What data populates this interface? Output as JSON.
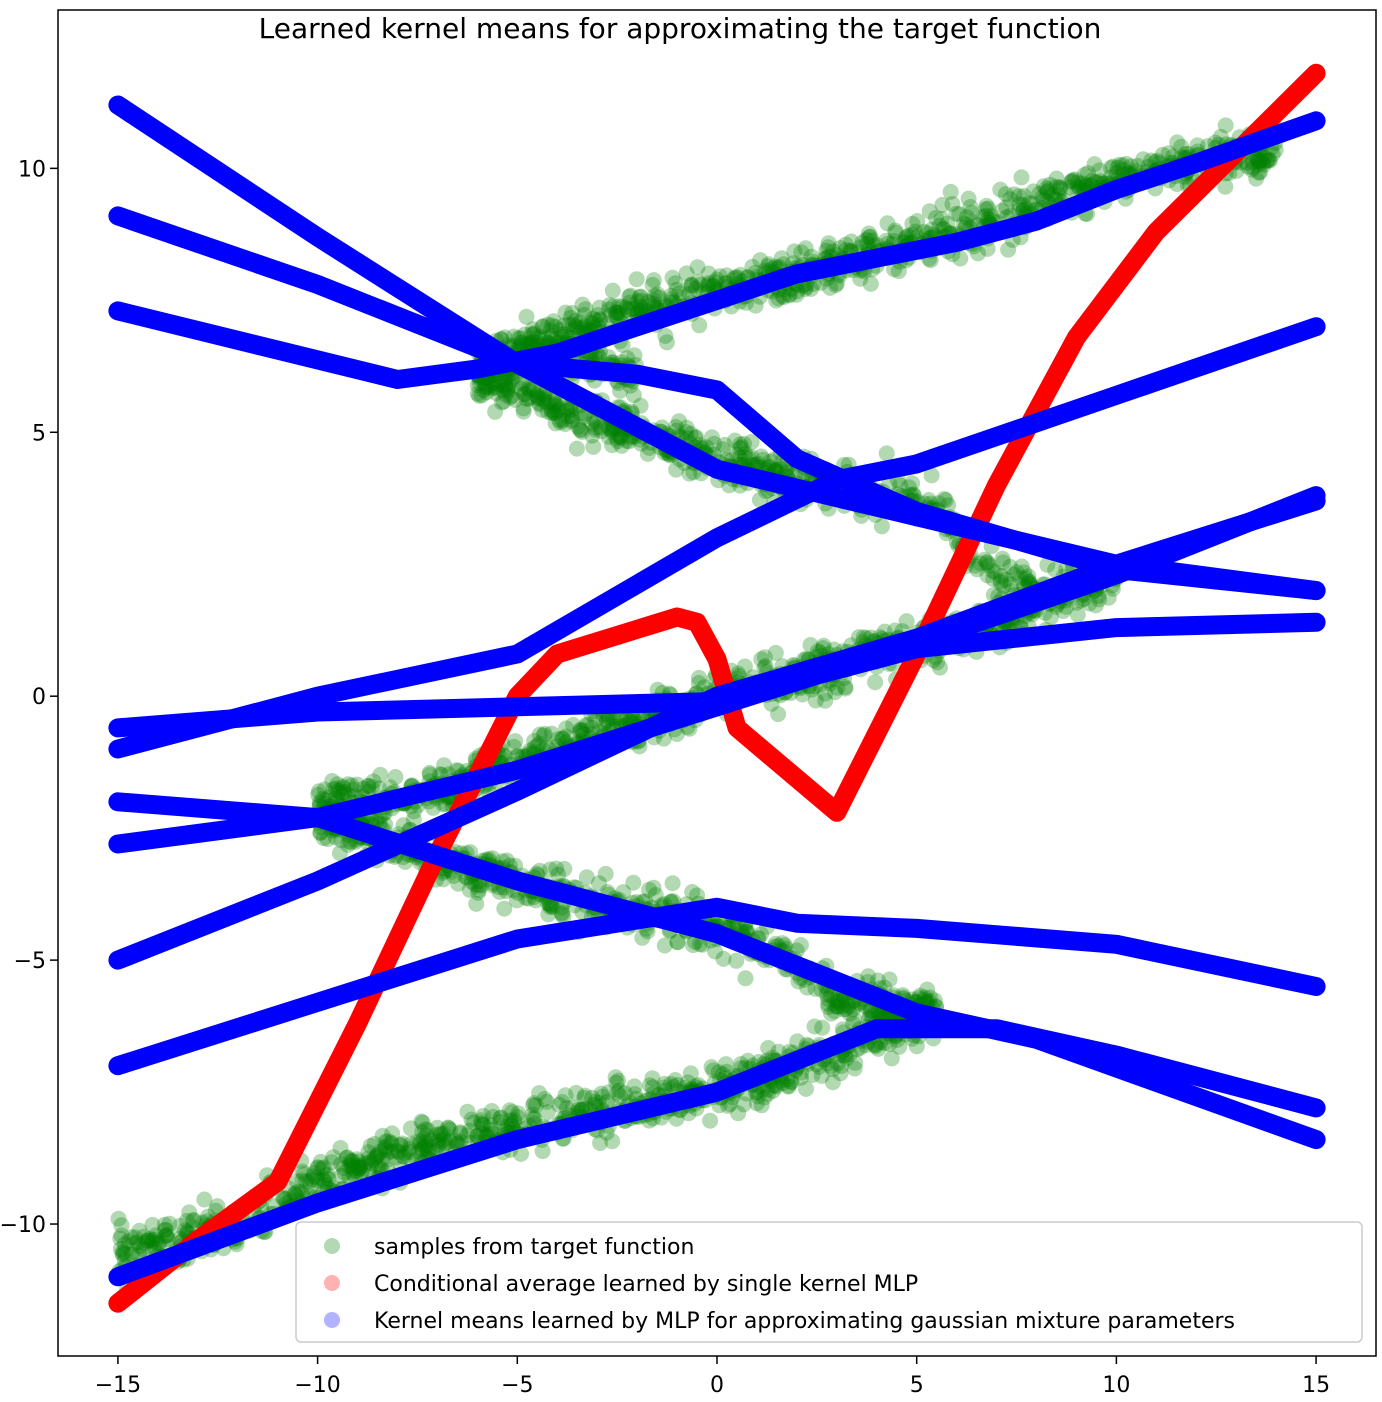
{
  "chart_data": {
    "type": "scatter",
    "title": "Learned kernel means for approximating the target function",
    "xlabel": "",
    "ylabel": "",
    "xlim": [
      -16.5,
      16.5
    ],
    "ylim": [
      -12.5,
      13.0
    ],
    "grid": false,
    "legend_placement": "lower-right",
    "x_ticks": [
      {
        "value": -15,
        "label": "−15"
      },
      {
        "value": -10,
        "label": "−10"
      },
      {
        "value": -5,
        "label": "−5"
      },
      {
        "value": 0,
        "label": "0"
      },
      {
        "value": 5,
        "label": "5"
      },
      {
        "value": 10,
        "label": "10"
      },
      {
        "value": 15,
        "label": "15"
      }
    ],
    "y_ticks": [
      {
        "value": -10,
        "label": "−10"
      },
      {
        "value": -5,
        "label": "−5"
      },
      {
        "value": 0,
        "label": "0"
      },
      {
        "value": 5,
        "label": "5"
      },
      {
        "value": 10,
        "label": "10"
      }
    ],
    "series": [
      {
        "name": "samples from target function",
        "color": "#008000",
        "alpha": 0.3,
        "kind": "scatter-cloud",
        "branches": [
          {
            "points": [
              [
                -15,
                -10.5
              ],
              [
                -12,
                -10.1
              ],
              [
                -10,
                -9.2
              ],
              [
                -8,
                -8.7
              ],
              [
                -6,
                -8.3
              ],
              [
                -4,
                -8.0
              ],
              [
                -2,
                -7.7
              ],
              [
                0,
                -7.5
              ],
              [
                2,
                -7.0
              ],
              [
                4,
                -6.4
              ],
              [
                5.5,
                -6.0
              ]
            ]
          },
          {
            "points": [
              [
                -10,
                -2.0
              ],
              [
                -8,
                -2.0
              ],
              [
                -6,
                -1.5
              ],
              [
                -4,
                -1.0
              ],
              [
                -2,
                -0.5
              ],
              [
                0,
                0.0
              ],
              [
                2,
                0.4
              ],
              [
                4,
                0.8
              ],
              [
                6,
                1.2
              ],
              [
                8,
                1.6
              ]
            ]
          },
          {
            "points": [
              [
                -10,
                -2.3
              ],
              [
                -8,
                -2.8
              ],
              [
                -6,
                -3.4
              ],
              [
                -4,
                -3.7
              ],
              [
                -2,
                -4.1
              ],
              [
                0,
                -4.4
              ],
              [
                2,
                -5.0
              ],
              [
                3,
                -5.8
              ],
              [
                4,
                -5.9
              ],
              [
                5.5,
                -6.0
              ]
            ]
          },
          {
            "points": [
              [
                -6,
                6.2
              ],
              [
                -4,
                6.8
              ],
              [
                -2,
                7.3
              ],
              [
                0,
                7.7
              ],
              [
                2,
                8.0
              ],
              [
                4,
                8.4
              ],
              [
                6,
                8.8
              ],
              [
                8,
                9.3
              ],
              [
                10,
                9.8
              ],
              [
                12,
                10.2
              ],
              [
                14,
                10.3
              ]
            ]
          },
          {
            "points": [
              [
                -6,
                6.0
              ],
              [
                -4,
                5.5
              ],
              [
                -2,
                5.0
              ],
              [
                0,
                4.4
              ],
              [
                2,
                4.1
              ],
              [
                4,
                3.8
              ],
              [
                5.5,
                3.6
              ],
              [
                6.5,
                2.5
              ],
              [
                8,
                1.9
              ],
              [
                10,
                2.2
              ]
            ]
          },
          {
            "points": [
              [
                -6,
                6.4
              ],
              [
                -4,
                6.5
              ],
              [
                -2,
                6.0
              ]
            ]
          }
        ]
      },
      {
        "name": "Conditional average learned by single kernel MLP",
        "color": "#ff0000",
        "kind": "thick-line",
        "x": [
          -15,
          -13,
          -11,
          -9,
          -7,
          -5,
          -4,
          -1,
          -0.5,
          0,
          0.5,
          3,
          5,
          7,
          9,
          11,
          13,
          15
        ],
        "y": [
          -11.5,
          -10.3,
          -9.2,
          -6.2,
          -3.0,
          0.0,
          0.8,
          1.5,
          1.4,
          0.7,
          -0.6,
          -2.2,
          0.8,
          4.0,
          6.8,
          8.8,
          10.3,
          11.8
        ]
      },
      {
        "name": "Kernel means learned by MLP for approximating gaussian mixture parameters",
        "color": "#0000ff",
        "kind": "thick-lines",
        "lines": [
          {
            "x": [
              -15,
              -10,
              -5,
              0,
              5,
              10,
              15
            ],
            "y": [
              11.2,
              8.7,
              6.3,
              4.3,
              3.4,
              2.5,
              2.0
            ]
          },
          {
            "x": [
              -15,
              -10,
              -5,
              -2,
              0,
              2,
              5,
              10,
              15
            ],
            "y": [
              9.1,
              7.8,
              6.3,
              6.1,
              5.8,
              4.5,
              3.5,
              2.4,
              2.0
            ]
          },
          {
            "x": [
              -15,
              -8,
              -6,
              -4,
              -2,
              0,
              2,
              4,
              6,
              8,
              10,
              12,
              15
            ],
            "y": [
              7.3,
              6.0,
              6.2,
              6.5,
              7.0,
              7.5,
              8.0,
              8.3,
              8.6,
              9.0,
              9.6,
              10.1,
              10.9
            ]
          },
          {
            "x": [
              -15,
              -10,
              -5,
              0,
              3,
              5,
              10,
              15
            ],
            "y": [
              -1.0,
              0.0,
              0.8,
              3.0,
              4.1,
              4.4,
              5.7,
              7.0
            ]
          },
          {
            "x": [
              -15,
              -10,
              -5,
              0,
              5,
              10,
              15
            ],
            "y": [
              -0.6,
              -0.3,
              -0.2,
              -0.1,
              0.9,
              1.3,
              1.4
            ]
          },
          {
            "x": [
              -15,
              -10,
              -5,
              0,
              5,
              10,
              15
            ],
            "y": [
              -2.8,
              -2.3,
              -1.4,
              -0.2,
              1.0,
              2.3,
              3.8
            ]
          },
          {
            "x": [
              -15,
              -10,
              -5,
              0,
              5,
              10,
              15
            ],
            "y": [
              -5.0,
              -3.5,
              -1.8,
              0.0,
              1.1,
              2.5,
              3.7
            ]
          },
          {
            "x": [
              -15,
              -10,
              -5,
              -2,
              0,
              5,
              8,
              15
            ],
            "y": [
              -2.0,
              -2.3,
              -3.5,
              -4.1,
              -4.5,
              -6.0,
              -6.5,
              -8.4
            ]
          },
          {
            "x": [
              -15,
              -10,
              -5,
              0,
              2,
              5,
              10,
              15
            ],
            "y": [
              -7.0,
              -5.8,
              -4.6,
              -4.0,
              -4.3,
              -4.4,
              -4.7,
              -5.5
            ]
          },
          {
            "x": [
              -15,
              -10,
              -5,
              0,
              2,
              4,
              7,
              10,
              15
            ],
            "y": [
              -11.0,
              -9.6,
              -8.4,
              -7.5,
              -6.9,
              -6.3,
              -6.3,
              -6.8,
              -7.8
            ]
          }
        ]
      }
    ]
  }
}
